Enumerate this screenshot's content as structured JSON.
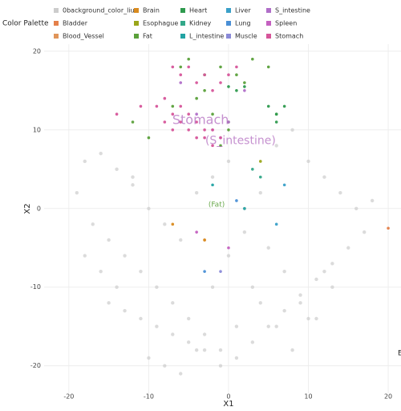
{
  "chart_data": {
    "type": "scatter",
    "legend_title": "Color Palette",
    "x_label": "X1",
    "y_label": "X2",
    "xlim": [
      -23.1,
      21.6
    ],
    "ylim": [
      -23.5,
      20.9
    ],
    "xticks": [
      -20,
      -10,
      0,
      10,
      20
    ],
    "yticks": [
      -20,
      -10,
      0,
      10,
      20
    ],
    "grid": true,
    "legend": "top",
    "annotations": [
      "Stomach",
      "(S_intestine)",
      "(Fat)",
      "E"
    ],
    "series": [
      {
        "name": "0background_color_liu",
        "color": "#cccccc",
        "x": [
          -18,
          -16,
          -14,
          -12,
          -17,
          -15,
          -13,
          -11,
          -9,
          -7,
          -5,
          -3,
          -1,
          1,
          3,
          5,
          7,
          9,
          11,
          13,
          15,
          17,
          -19,
          -18,
          -16,
          -14,
          -12,
          -10,
          -8,
          -6,
          -4,
          -2,
          0,
          2,
          4,
          6,
          8,
          10,
          12,
          14,
          16,
          18,
          -15,
          -13,
          -11,
          -9,
          -7,
          -5,
          -3,
          -1,
          1,
          3,
          5,
          7,
          9,
          11,
          13,
          -10,
          -8,
          -6,
          -4,
          -2,
          0,
          2,
          4,
          6,
          8,
          10,
          12
        ],
        "y": [
          6,
          7,
          5,
          3,
          -2,
          -4,
          -6,
          -8,
          -10,
          -12,
          -14,
          -16,
          -18,
          -19,
          -17,
          -15,
          -13,
          -11,
          -9,
          -7,
          -5,
          -3,
          2,
          -6,
          -8,
          -10,
          4,
          0,
          -2,
          -4,
          2,
          4,
          6,
          0,
          2,
          8,
          10,
          6,
          4,
          2,
          0,
          1,
          -12,
          -13,
          -14,
          -15,
          -16,
          -17,
          -18,
          -20,
          -15,
          -10,
          -5,
          -8,
          -12,
          -14,
          -10,
          -19,
          -20,
          -21,
          -18,
          -10,
          -6,
          -3,
          -12,
          -15,
          -18,
          -14,
          -8
        ]
      },
      {
        "name": "Bladder",
        "color": "#e4804a",
        "x": [
          20
        ],
        "y": [
          -2.5
        ]
      },
      {
        "name": "Blood_Vessel",
        "color": "#e0955a",
        "x": [
          -3
        ],
        "y": [
          -4
        ]
      },
      {
        "name": "Brain",
        "color": "#d98b1f",
        "x": [
          -7,
          -3
        ],
        "y": [
          -2,
          -4
        ]
      },
      {
        "name": "Esophague",
        "color": "#9aa61a",
        "x": [
          4
        ],
        "y": [
          6
        ]
      },
      {
        "name": "Fat",
        "color": "#5aa03a",
        "x": [
          -6,
          -5,
          -3,
          -1,
          1,
          3,
          -4,
          -2,
          0,
          2,
          5,
          6,
          -12,
          -10,
          -7,
          -3,
          -1,
          0
        ],
        "y": [
          18,
          19,
          17,
          18,
          17,
          19,
          14,
          12,
          11,
          16,
          18,
          12,
          11,
          9,
          13,
          15,
          8,
          10
        ]
      },
      {
        "name": "Heart",
        "color": "#2e9a4e",
        "x": [
          5,
          6,
          6,
          7,
          0,
          1,
          2
        ],
        "y": [
          13,
          12,
          11,
          13,
          15.5,
          15,
          15.5
        ]
      },
      {
        "name": "Kidney",
        "color": "#33a889",
        "x": [
          3,
          4
        ],
        "y": [
          5,
          4
        ]
      },
      {
        "name": "L_intestine",
        "color": "#22a3a3",
        "x": [
          -2,
          2
        ],
        "y": [
          3,
          0
        ]
      },
      {
        "name": "Liver",
        "color": "#3aa0c8",
        "x": [
          6,
          7
        ],
        "y": [
          -2,
          3
        ]
      },
      {
        "name": "Lung",
        "color": "#4a8fd6",
        "x": [
          -3,
          1
        ],
        "y": [
          -8,
          1
        ]
      },
      {
        "name": "Muscle",
        "color": "#8a8ad8",
        "x": [
          -1
        ],
        "y": [
          -8
        ]
      },
      {
        "name": "S_intestine",
        "color": "#b06ec8",
        "x": [
          -4,
          -2,
          0,
          2,
          -6,
          -1
        ],
        "y": [
          12,
          10,
          11,
          15,
          16,
          9
        ]
      },
      {
        "name": "Spleen",
        "color": "#c460c0",
        "x": [
          -4,
          0
        ],
        "y": [
          -3,
          -5
        ]
      },
      {
        "name": "Stomach",
        "color": "#d6559a",
        "x": [
          -9,
          -8,
          -7,
          -6,
          -5,
          -4,
          -3,
          -2,
          -1,
          -8,
          -7,
          -6,
          -5,
          -4,
          -3,
          -2,
          -7,
          -6,
          -5,
          -4,
          -3,
          -2,
          -1,
          0,
          1,
          -11,
          -14
        ],
        "y": [
          13,
          14,
          12,
          13,
          12,
          11,
          10,
          10,
          9,
          11,
          10,
          11,
          10,
          9,
          9,
          8,
          18,
          17,
          18,
          16,
          17,
          15,
          16,
          17,
          18,
          13,
          12
        ]
      }
    ]
  }
}
